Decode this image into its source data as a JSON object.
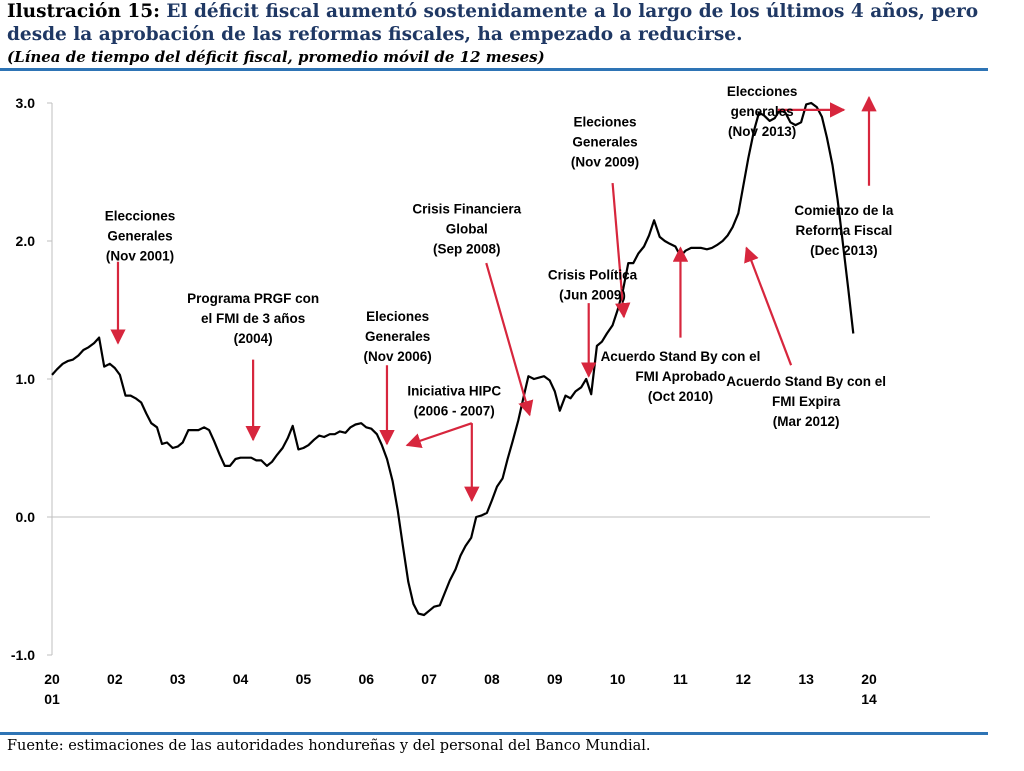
{
  "header": {
    "lead": "Ilustración 15:",
    "title": "El déficit fiscal aumentó sostenidamente a lo largo de los últimos 4 años, pero desde la aprobación de las reformas fiscales, ha empezado a reducirse.",
    "subtitle": "(Línea de tiempo del déficit fiscal, promedio móvil de 12 meses)"
  },
  "source": "Fuente: estimaciones de las autoridades hondureñas y del personal del Banco Mundial.",
  "colors": {
    "line": "#000000",
    "arrow": "#d7263d",
    "title": "#1f3864",
    "rule": "#2e74b5",
    "axis": "#bfbfbf"
  },
  "chart_data": {
    "type": "line",
    "title": "",
    "xlabel": "",
    "ylabel": "",
    "ylim": [
      -1.0,
      3.0
    ],
    "yticks": [
      "3.0",
      "2.0",
      "1.0",
      "0.0",
      "-1.0"
    ],
    "xticks": [
      {
        "x": 2001.0,
        "lines": [
          "20",
          "01"
        ]
      },
      {
        "x": 2002.0,
        "lines": [
          "02"
        ]
      },
      {
        "x": 2003.0,
        "lines": [
          "03"
        ]
      },
      {
        "x": 2004.0,
        "lines": [
          "04"
        ]
      },
      {
        "x": 2005.0,
        "lines": [
          "05"
        ]
      },
      {
        "x": 2006.0,
        "lines": [
          "06"
        ]
      },
      {
        "x": 2007.0,
        "lines": [
          "07"
        ]
      },
      {
        "x": 2008.0,
        "lines": [
          "08"
        ]
      },
      {
        "x": 2009.0,
        "lines": [
          "09"
        ]
      },
      {
        "x": 2010.0,
        "lines": [
          "10"
        ]
      },
      {
        "x": 2011.0,
        "lines": [
          "11"
        ]
      },
      {
        "x": 2012.0,
        "lines": [
          "12"
        ]
      },
      {
        "x": 2013.0,
        "lines": [
          "13"
        ]
      },
      {
        "x": 2014.0,
        "lines": [
          "20",
          "14"
        ]
      }
    ],
    "grid": false,
    "legend": "none",
    "series": [
      {
        "points": [
          [
            2001.0,
            1.03
          ],
          [
            2001.08,
            1.07
          ],
          [
            2001.17,
            1.11
          ],
          [
            2001.25,
            1.13
          ],
          [
            2001.33,
            1.14
          ],
          [
            2001.42,
            1.17
          ],
          [
            2001.5,
            1.21
          ],
          [
            2001.58,
            1.23
          ],
          [
            2001.67,
            1.26
          ],
          [
            2001.75,
            1.3
          ],
          [
            2001.83,
            1.09
          ],
          [
            2001.92,
            1.11
          ],
          [
            2002.0,
            1.08
          ],
          [
            2002.08,
            1.03
          ],
          [
            2002.17,
            0.88
          ],
          [
            2002.25,
            0.88
          ],
          [
            2002.33,
            0.86
          ],
          [
            2002.42,
            0.83
          ],
          [
            2002.5,
            0.75
          ],
          [
            2002.58,
            0.68
          ],
          [
            2002.67,
            0.65
          ],
          [
            2002.75,
            0.53
          ],
          [
            2002.83,
            0.54
          ],
          [
            2002.92,
            0.5
          ],
          [
            2003.0,
            0.51
          ],
          [
            2003.08,
            0.54
          ],
          [
            2003.17,
            0.63
          ],
          [
            2003.25,
            0.63
          ],
          [
            2003.33,
            0.63
          ],
          [
            2003.42,
            0.65
          ],
          [
            2003.5,
            0.63
          ],
          [
            2003.58,
            0.55
          ],
          [
            2003.67,
            0.45
          ],
          [
            2003.75,
            0.37
          ],
          [
            2003.83,
            0.37
          ],
          [
            2003.92,
            0.42
          ],
          [
            2004.0,
            0.43
          ],
          [
            2004.08,
            0.43
          ],
          [
            2004.17,
            0.43
          ],
          [
            2004.25,
            0.41
          ],
          [
            2004.33,
            0.41
          ],
          [
            2004.42,
            0.37
          ],
          [
            2004.5,
            0.4
          ],
          [
            2004.58,
            0.45
          ],
          [
            2004.67,
            0.5
          ],
          [
            2004.75,
            0.57
          ],
          [
            2004.83,
            0.66
          ],
          [
            2004.92,
            0.49
          ],
          [
            2005.0,
            0.5
          ],
          [
            2005.08,
            0.52
          ],
          [
            2005.17,
            0.56
          ],
          [
            2005.25,
            0.59
          ],
          [
            2005.33,
            0.58
          ],
          [
            2005.42,
            0.6
          ],
          [
            2005.5,
            0.6
          ],
          [
            2005.58,
            0.62
          ],
          [
            2005.67,
            0.61
          ],
          [
            2005.75,
            0.65
          ],
          [
            2005.83,
            0.67
          ],
          [
            2005.92,
            0.68
          ],
          [
            2006.0,
            0.65
          ],
          [
            2006.08,
            0.64
          ],
          [
            2006.17,
            0.6
          ],
          [
            2006.25,
            0.52
          ],
          [
            2006.33,
            0.42
          ],
          [
            2006.42,
            0.26
          ],
          [
            2006.5,
            0.05
          ],
          [
            2006.58,
            -0.2
          ],
          [
            2006.67,
            -0.47
          ],
          [
            2006.75,
            -0.63
          ],
          [
            2006.83,
            -0.7
          ],
          [
            2006.92,
            -0.71
          ],
          [
            2007.0,
            -0.68
          ],
          [
            2007.08,
            -0.65
          ],
          [
            2007.17,
            -0.64
          ],
          [
            2007.25,
            -0.55
          ],
          [
            2007.33,
            -0.46
          ],
          [
            2007.42,
            -0.38
          ],
          [
            2007.5,
            -0.28
          ],
          [
            2007.58,
            -0.21
          ],
          [
            2007.67,
            -0.15
          ],
          [
            2007.75,
            0.0
          ],
          [
            2007.83,
            0.01
          ],
          [
            2007.92,
            0.03
          ],
          [
            2008.0,
            0.12
          ],
          [
            2008.08,
            0.22
          ],
          [
            2008.17,
            0.28
          ],
          [
            2008.25,
            0.42
          ],
          [
            2008.33,
            0.55
          ],
          [
            2008.42,
            0.7
          ],
          [
            2008.5,
            0.86
          ],
          [
            2008.58,
            1.02
          ],
          [
            2008.67,
            1.0
          ],
          [
            2008.75,
            1.01
          ],
          [
            2008.83,
            1.02
          ],
          [
            2008.92,
            0.99
          ],
          [
            2009.0,
            0.91
          ],
          [
            2009.08,
            0.77
          ],
          [
            2009.17,
            0.88
          ],
          [
            2009.25,
            0.86
          ],
          [
            2009.33,
            0.91
          ],
          [
            2009.42,
            0.94
          ],
          [
            2009.5,
            1.0
          ],
          [
            2009.58,
            0.89
          ],
          [
            2009.67,
            1.24
          ],
          [
            2009.75,
            1.27
          ],
          [
            2009.83,
            1.33
          ],
          [
            2009.92,
            1.39
          ],
          [
            2010.0,
            1.5
          ],
          [
            2010.08,
            1.63
          ],
          [
            2010.17,
            1.84
          ],
          [
            2010.25,
            1.84
          ],
          [
            2010.33,
            1.91
          ],
          [
            2010.42,
            1.96
          ],
          [
            2010.5,
            2.04
          ],
          [
            2010.58,
            2.15
          ],
          [
            2010.67,
            2.03
          ],
          [
            2010.75,
            2.0
          ],
          [
            2010.83,
            1.98
          ],
          [
            2010.92,
            1.96
          ],
          [
            2011.0,
            1.89
          ],
          [
            2011.08,
            1.93
          ],
          [
            2011.17,
            1.95
          ],
          [
            2011.25,
            1.95
          ],
          [
            2011.33,
            1.95
          ],
          [
            2011.42,
            1.94
          ],
          [
            2011.5,
            1.95
          ],
          [
            2011.58,
            1.97
          ],
          [
            2011.67,
            2.0
          ],
          [
            2011.75,
            2.04
          ],
          [
            2011.83,
            2.1
          ],
          [
            2011.92,
            2.2
          ],
          [
            2012.0,
            2.4
          ],
          [
            2012.08,
            2.6
          ],
          [
            2012.17,
            2.8
          ],
          [
            2012.25,
            2.93
          ],
          [
            2012.33,
            2.91
          ],
          [
            2012.42,
            2.87
          ],
          [
            2012.5,
            2.89
          ],
          [
            2012.58,
            2.95
          ],
          [
            2012.67,
            2.93
          ],
          [
            2012.75,
            2.86
          ],
          [
            2012.83,
            2.84
          ],
          [
            2012.92,
            2.86
          ],
          [
            2013.0,
            2.99
          ],
          [
            2013.08,
            3.0
          ],
          [
            2013.17,
            2.97
          ],
          [
            2013.25,
            2.9
          ],
          [
            2013.33,
            2.75
          ],
          [
            2013.42,
            2.55
          ],
          [
            2013.5,
            2.3
          ],
          [
            2013.58,
            2.0
          ],
          [
            2013.67,
            1.65
          ],
          [
            2013.75,
            1.33
          ]
        ]
      }
    ],
    "annotations": [
      {
        "lines": [
          "Elecciones",
          "Generales",
          "(Nov 2001)"
        ],
        "text_x": 2002.4,
        "text_y": 2.15
      },
      {
        "lines": [
          "Programa PRGF con",
          "el FMI de 3 años",
          "(2004)"
        ],
        "text_x": 2004.2,
        "text_y": 1.55
      },
      {
        "lines": [
          "Eleciones",
          "Generales",
          "(Nov 2006)"
        ],
        "text_x": 2006.5,
        "text_y": 1.42
      },
      {
        "lines": [
          "Iniciativa HIPC",
          "(2006 - 2007)"
        ],
        "text_x": 2007.4,
        "text_y": 0.88
      },
      {
        "lines": [
          "Crisis Financiera",
          "Global",
          "(Sep 2008)"
        ],
        "text_x": 2007.6,
        "text_y": 2.2
      },
      {
        "lines": [
          "Crisis Política",
          "(Jun 2009)"
        ],
        "text_x": 2009.6,
        "text_y": 1.72
      },
      {
        "lines": [
          "Eleciones",
          "Generales",
          "(Nov 2009)"
        ],
        "text_x": 2009.8,
        "text_y": 2.83
      },
      {
        "lines": [
          "Acuerdo Stand By con el",
          "FMI Aprobado",
          "(Oct 2010)"
        ],
        "text_x": 2011.0,
        "text_y": 1.13
      },
      {
        "lines": [
          "Acuerdo Stand By con el",
          "FMI Expira",
          "(Mar 2012)"
        ],
        "text_x": 2013.0,
        "text_y": 0.95
      },
      {
        "lines": [
          "Elecciones",
          "generales",
          "(Nov 2013)"
        ],
        "text_x": 2012.3,
        "text_y": 3.05
      },
      {
        "lines": [
          "Comienzo de la",
          "Reforma Fiscal",
          "(Dec 2013)"
        ],
        "text_x": 2013.6,
        "text_y": 2.19
      }
    ],
    "arrows": [
      {
        "from": [
          2002.05,
          1.85
        ],
        "to": [
          2002.05,
          1.26
        ]
      },
      {
        "from": [
          2004.2,
          1.14
        ],
        "to": [
          2004.2,
          0.56
        ]
      },
      {
        "from": [
          2006.33,
          1.1
        ],
        "to": [
          2006.33,
          0.53
        ]
      },
      {
        "from": [
          2007.68,
          0.68
        ],
        "to": [
          2006.65,
          0.52
        ]
      },
      {
        "from": [
          2007.68,
          0.68
        ],
        "to": [
          2007.68,
          0.12
        ]
      },
      {
        "from": [
          2007.91,
          1.84
        ],
        "to": [
          2008.6,
          0.74
        ]
      },
      {
        "from": [
          2009.54,
          1.55
        ],
        "to": [
          2009.54,
          1.02
        ]
      },
      {
        "from": [
          2009.92,
          2.42
        ],
        "to": [
          2010.1,
          1.45
        ]
      },
      {
        "from": [
          2011.0,
          1.3
        ],
        "to": [
          2011.0,
          1.95
        ]
      },
      {
        "from": [
          2012.76,
          1.1
        ],
        "to": [
          2012.05,
          1.95
        ]
      },
      {
        "from": [
          2012.55,
          2.95
        ],
        "to": [
          2013.6,
          2.95
        ]
      },
      {
        "from": [
          2014.0,
          2.4
        ],
        "to": [
          2014.0,
          3.04
        ]
      }
    ]
  }
}
